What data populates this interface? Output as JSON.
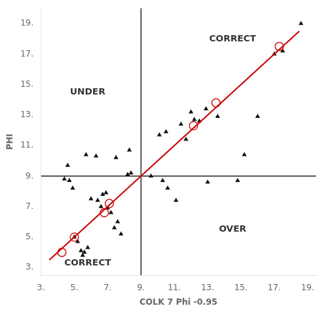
{
  "chart_data": {
    "type": "scatter",
    "xlabel": "COLK 7 Phi -0.95",
    "ylabel": "PHI",
    "xlim": [
      3.0,
      19.5
    ],
    "ylim": [
      2.5,
      20.0
    ],
    "xticks": [
      {
        "value": 3,
        "label": "3."
      },
      {
        "value": 5,
        "label": "5."
      },
      {
        "value": 7,
        "label": "7."
      },
      {
        "value": 9,
        "label": "9."
      },
      {
        "value": 11,
        "label": "11."
      },
      {
        "value": 13,
        "label": "13."
      },
      {
        "value": 15,
        "label": "15."
      },
      {
        "value": 17,
        "label": "17."
      },
      {
        "value": 19,
        "label": "19."
      }
    ],
    "yticks": [
      {
        "value": 3,
        "label": "3."
      },
      {
        "value": 5,
        "label": "5."
      },
      {
        "value": 7,
        "label": "7."
      },
      {
        "value": 9,
        "label": "9."
      },
      {
        "value": 11,
        "label": "11."
      },
      {
        "value": 13,
        "label": "13."
      },
      {
        "value": 15,
        "label": "15."
      },
      {
        "value": 17,
        "label": "17."
      },
      {
        "value": 19,
        "label": "19."
      }
    ],
    "grid": false,
    "vlines": [
      9.0
    ],
    "hlines": [
      9.0
    ],
    "series": [
      {
        "type": "scatter",
        "marker": "triangle",
        "color": "#111111",
        "x": [
          4.4,
          4.7,
          4.9,
          5.0,
          5.2,
          5.4,
          5.5,
          5.6,
          5.8,
          6.0,
          6.4,
          6.6,
          6.7,
          6.9,
          7.0,
          7.2,
          7.4,
          7.6,
          7.8,
          8.2,
          8.4,
          4.6,
          5.7,
          6.3,
          7.5,
          8.3,
          10.1,
          10.5,
          11.4,
          11.7,
          12.0,
          12.2,
          12.5,
          12.9,
          10.6,
          11.1,
          13.0,
          14.8,
          15.2,
          16.0,
          17.0,
          17.5,
          18.6,
          9.6,
          10.3,
          13.6
        ],
        "values": [
          8.8,
          8.7,
          8.2,
          5.0,
          4.7,
          4.1,
          3.8,
          4.0,
          4.3,
          7.5,
          7.4,
          7.0,
          7.8,
          7.9,
          6.9,
          6.6,
          5.6,
          6.0,
          5.2,
          9.1,
          9.2,
          9.7,
          10.4,
          10.3,
          10.2,
          10.7,
          11.7,
          11.9,
          12.4,
          11.4,
          13.2,
          12.7,
          12.6,
          13.4,
          8.2,
          7.4,
          8.6,
          8.7,
          10.4,
          12.9,
          17.0,
          17.2,
          19.0,
          9.0,
          8.7,
          12.9
        ]
      },
      {
        "type": "line",
        "color": "#cc0000",
        "x": [
          3.5,
          18.5
        ],
        "values": [
          3.5,
          18.5
        ]
      },
      {
        "type": "scatter",
        "marker": "circle",
        "color": "#cc0000",
        "x": [
          4.25,
          5.0,
          6.8,
          7.1,
          12.15,
          13.5,
          17.3
        ],
        "values": [
          4.0,
          5.0,
          6.6,
          7.2,
          12.3,
          13.8,
          17.5
        ]
      }
    ],
    "annotations": [
      {
        "text": "UNDER",
        "x": 5.8,
        "y": 14.5
      },
      {
        "text": "CORRECT",
        "x": 5.8,
        "y": 3.3
      },
      {
        "text": "CORRECT",
        "x": 14.5,
        "y": 18.0
      },
      {
        "text": "OVER",
        "x": 14.5,
        "y": 5.5
      }
    ]
  }
}
